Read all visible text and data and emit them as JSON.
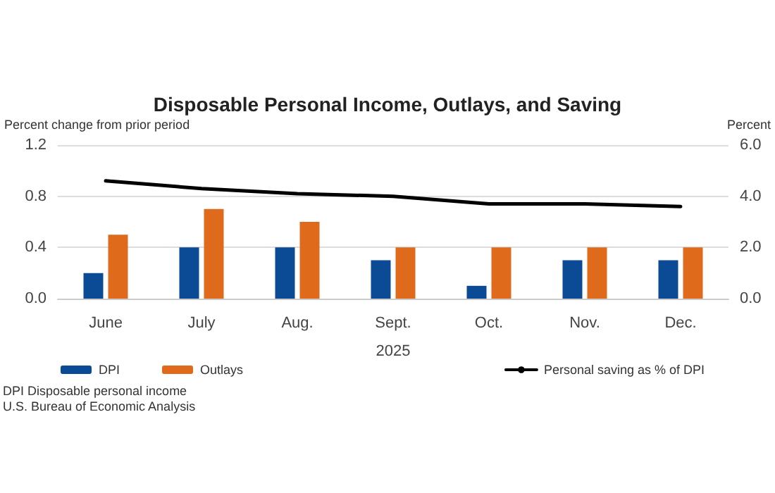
{
  "chart_data": {
    "type": "bar",
    "title": "Disposable Personal Income, Outlays, and Saving",
    "ylabel": "Percent change from prior period",
    "y2label": "Percent",
    "xlabel": "2025",
    "categories": [
      "June",
      "July",
      "Aug.",
      "Sept.",
      "Oct.",
      "Nov.",
      "Dec."
    ],
    "series": [
      {
        "name": "DPI",
        "color": "#0b4a94",
        "values": [
          0.2,
          0.4,
          0.4,
          0.3,
          0.1,
          0.3,
          0.3
        ]
      },
      {
        "name": "Outlays",
        "color": "#e06a1b",
        "values": [
          0.5,
          0.7,
          0.6,
          0.4,
          0.4,
          0.4,
          0.4
        ]
      },
      {
        "name": "Personal saving as % of DPI",
        "type": "line",
        "axis": "y2",
        "color": "#000000",
        "values": [
          4.6,
          4.3,
          4.1,
          4.0,
          3.7,
          3.7,
          3.6
        ]
      }
    ],
    "ylim": [
      0,
      1.2
    ],
    "yticks": [
      {
        "value": 0,
        "label": "0.0"
      },
      {
        "value": 0.4,
        "label": "0.4"
      },
      {
        "value": 0.8,
        "label": "0.8"
      },
      {
        "value": 1.2,
        "label": "1.2"
      }
    ],
    "y2lim": [
      0,
      6
    ],
    "y2ticks": [
      {
        "value": 0,
        "label": "0.0"
      },
      {
        "value": 2,
        "label": "2.0"
      },
      {
        "value": 4,
        "label": "4.0"
      },
      {
        "value": 6,
        "label": "6.0"
      }
    ],
    "grid": "y",
    "legend": "bottom",
    "marker": "none",
    "annotations": [
      "DPI Disposable personal income",
      "U.S. Bureau of Economic Analysis"
    ]
  }
}
